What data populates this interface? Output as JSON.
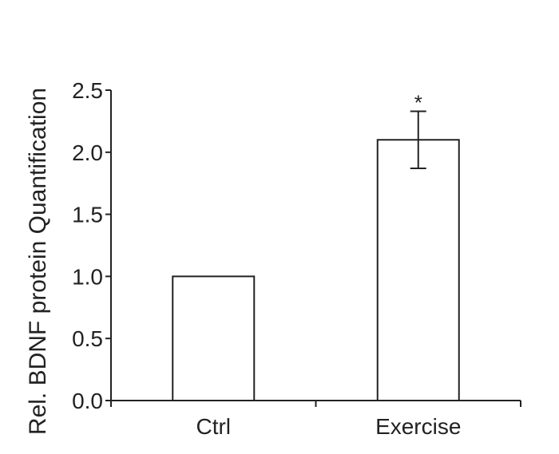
{
  "chart_data": {
    "type": "bar",
    "categories": [
      "Ctrl",
      "Exercise"
    ],
    "values": [
      1.0,
      2.1
    ],
    "error": [
      null,
      0.23
    ],
    "annotations": [
      null,
      "*"
    ],
    "title": "",
    "xlabel": "",
    "ylabel": "Rel.  BDNF protein Quantification",
    "ylim": [
      0,
      2.5
    ],
    "yticks": [
      "0.0",
      "0.5",
      "1.0",
      "1.5",
      "2.0",
      "2.5"
    ],
    "grid": false,
    "legend": "none"
  }
}
